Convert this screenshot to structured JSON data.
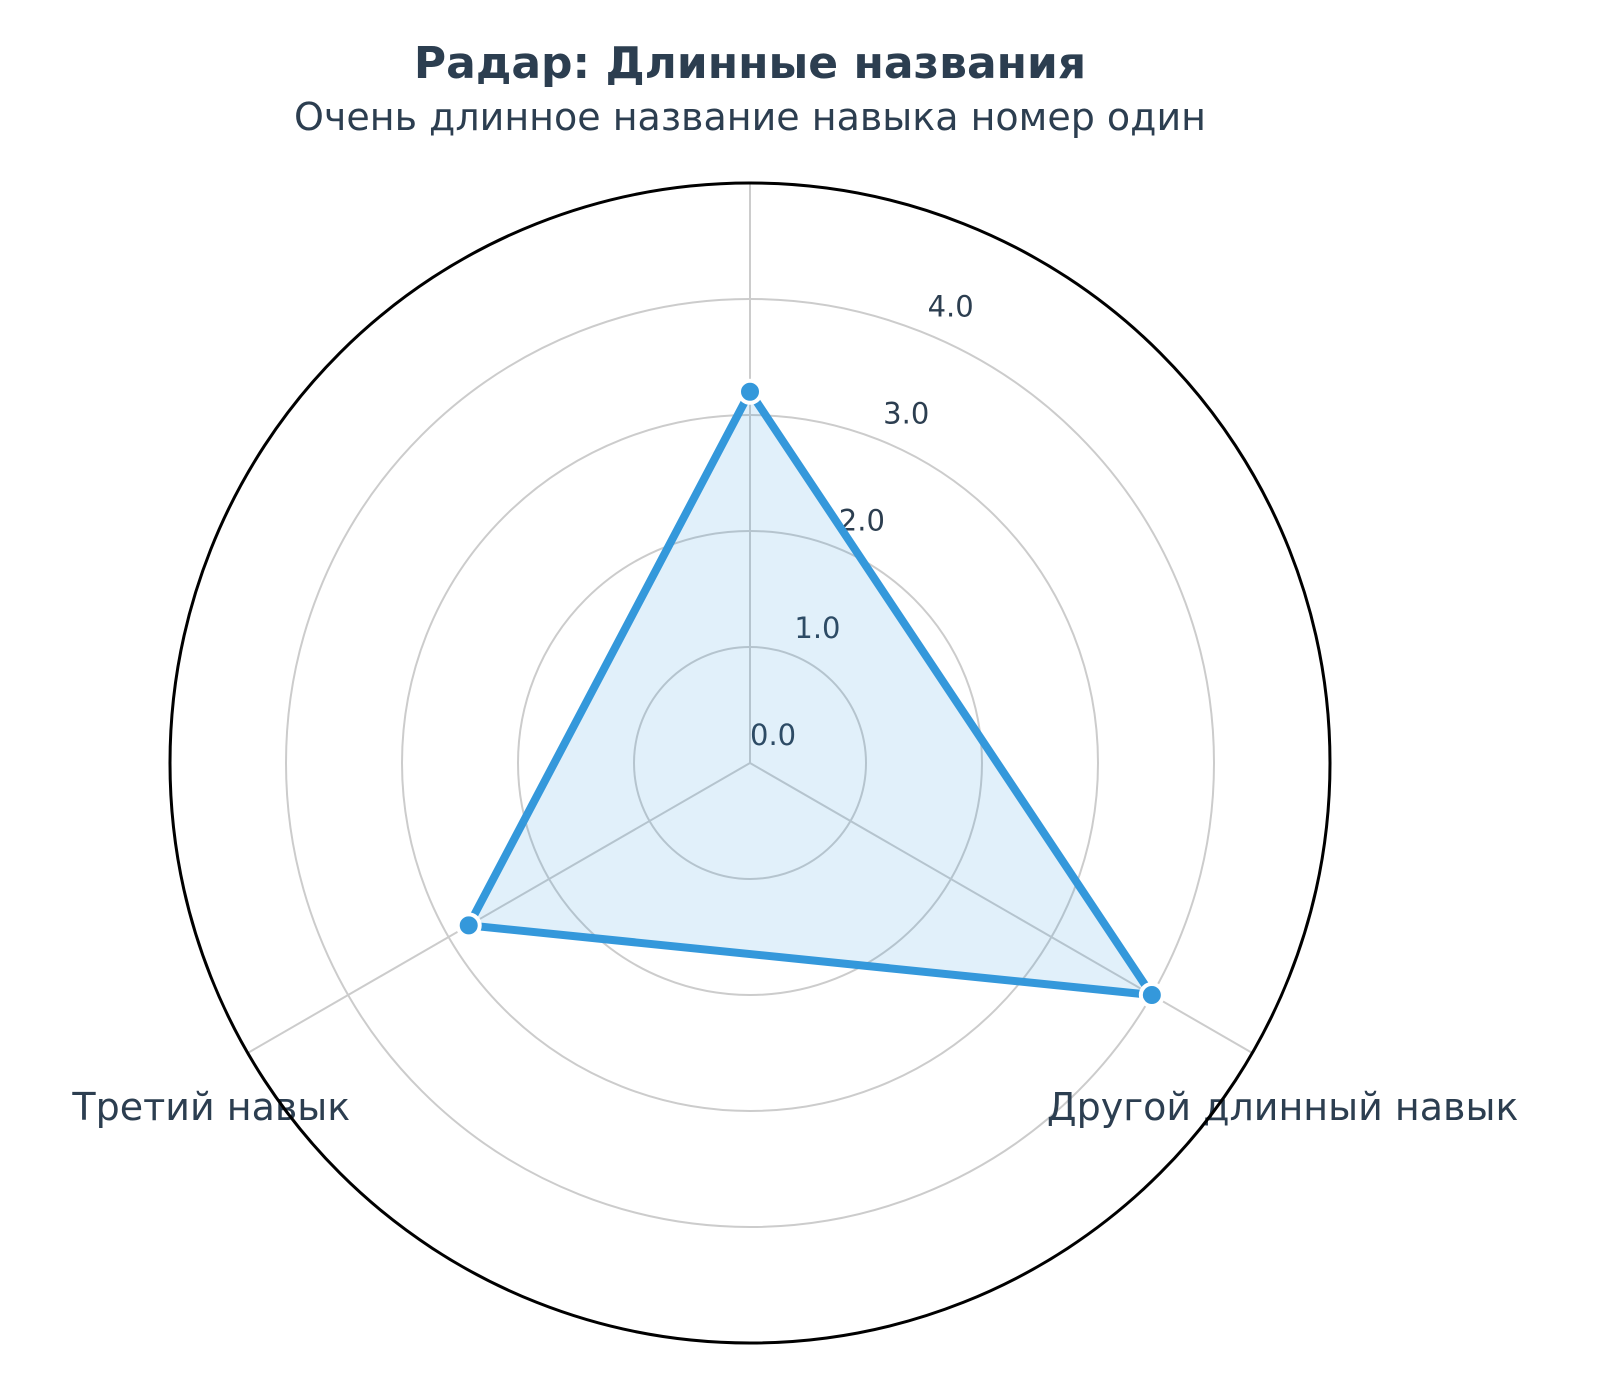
{
  "chart_data": {
    "type": "radar",
    "title": "Радар: Длинные названия",
    "axes": [
      "Очень длинное название навыка номер один",
      "Другой длинный навык",
      "Третий навык"
    ],
    "series": [
      {
        "values": [
          3.2,
          4.0,
          2.8
        ]
      }
    ],
    "rlim": [
      0,
      5
    ],
    "rticks": [
      "0.0",
      "1.0",
      "2.0",
      "3.0",
      "4.0"
    ],
    "grid": true,
    "colors": {
      "series": "#3498db",
      "fill": "#3498db",
      "text": "#2c3e50",
      "grid": "#cccccc",
      "frame": "#000000"
    }
  }
}
